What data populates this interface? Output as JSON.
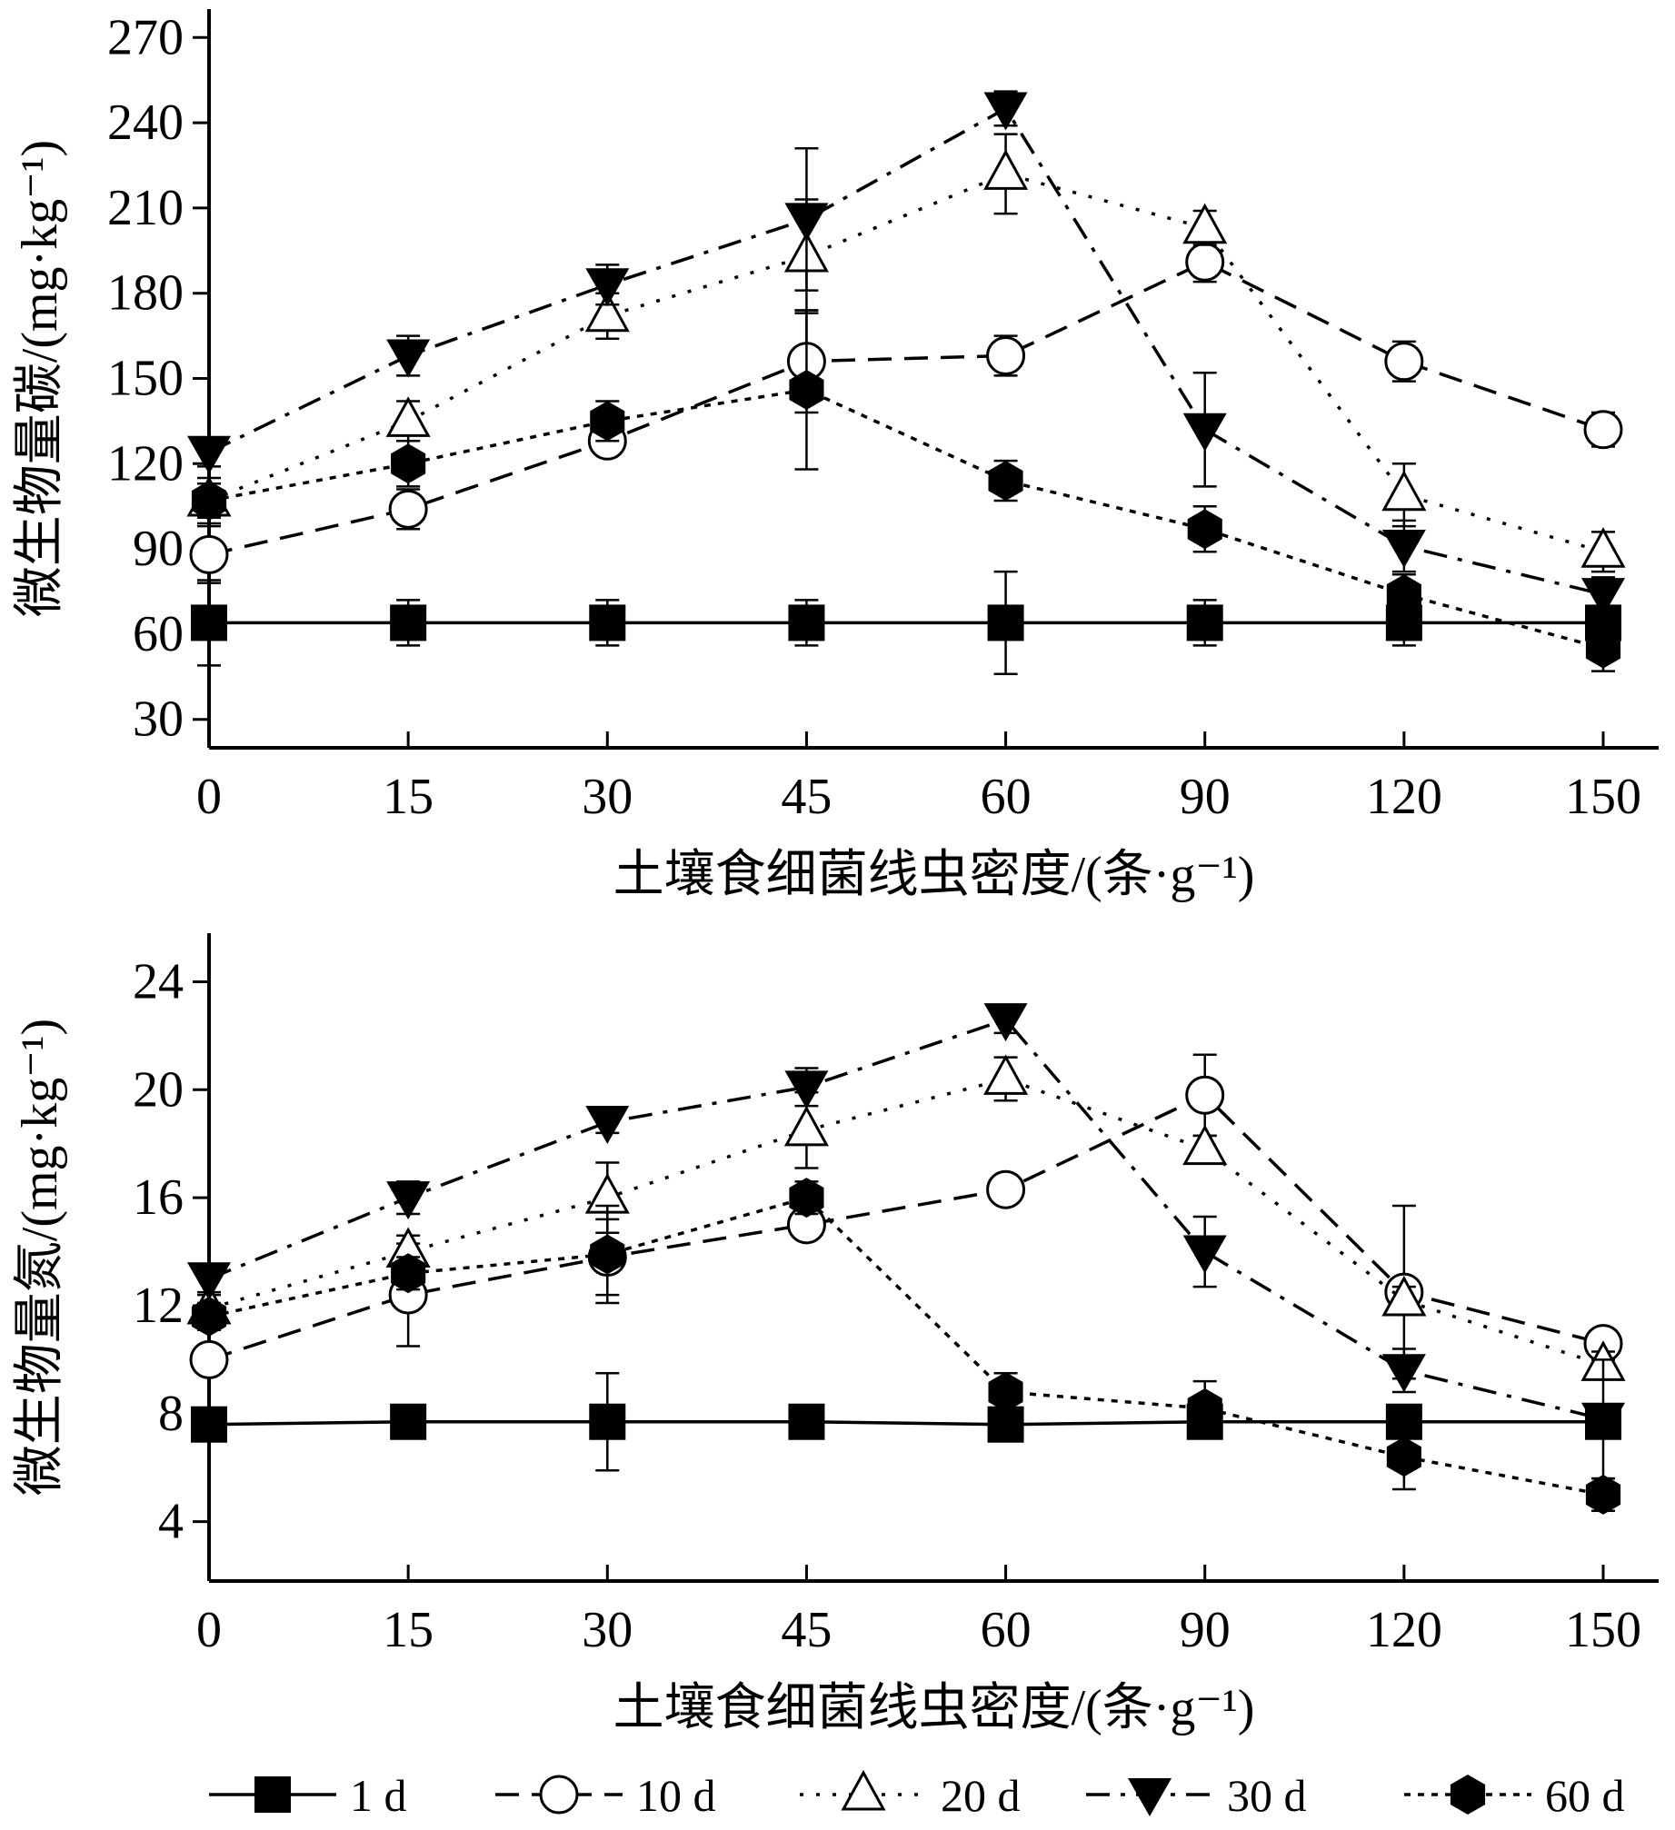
{
  "chart_data": [
    {
      "type": "line",
      "ylabel": "微生物量碳/(mg·kg⁻¹)",
      "xlabel": "土壤食细菌线虫密度/(条·g⁻¹)",
      "categories": [
        "0",
        "15",
        "30",
        "45",
        "60",
        "90",
        "120",
        "150"
      ],
      "ylim": [
        20,
        280
      ],
      "yticks": [
        "30",
        "60",
        "90",
        "120",
        "150",
        "180",
        "210",
        "240",
        "270"
      ],
      "series": [
        {
          "name": "1 d",
          "values": [
            64,
            64,
            64,
            64,
            64,
            64,
            64,
            64
          ],
          "errors": [
            15,
            8,
            8,
            8,
            18,
            8,
            8,
            4
          ]
        },
        {
          "name": "10 d",
          "values": [
            88,
            104,
            128,
            156,
            158,
            191,
            156,
            132
          ],
          "errors": [
            10,
            7,
            5,
            18,
            7,
            7,
            7,
            6
          ]
        },
        {
          "name": "20 d",
          "values": [
            107,
            135,
            172,
            193,
            222,
            203,
            109,
            89
          ],
          "errors": [
            8,
            7,
            8,
            20,
            14,
            6,
            11,
            7
          ]
        },
        {
          "name": "30 d",
          "values": [
            124,
            158,
            183,
            206,
            245,
            132,
            91,
            74
          ],
          "errors": [
            5,
            7,
            7,
            25,
            6,
            20,
            9,
            6
          ]
        },
        {
          "name": "60 d",
          "values": [
            107,
            120,
            135,
            146,
            114,
            97,
            74,
            55
          ],
          "errors": [
            6,
            8,
            7,
            28,
            7,
            8,
            7,
            8
          ]
        }
      ]
    },
    {
      "type": "line",
      "ylabel": "微生物量氮/(mg·kg⁻¹)",
      "xlabel": "土壤食细菌线虫密度/(条·g⁻¹)",
      "categories": [
        "0",
        "15",
        "30",
        "45",
        "60",
        "90",
        "120",
        "150"
      ],
      "ylim": [
        1.8,
        25.8
      ],
      "yticks": [
        "4",
        "8",
        "12",
        "16",
        "20",
        "24"
      ],
      "series": [
        {
          "name": "1 d",
          "values": [
            7.6,
            7.7,
            7.7,
            7.7,
            7.6,
            7.7,
            7.7,
            7.7
          ],
          "errors": [
            0.3,
            0.3,
            1.8,
            0.3,
            0.3,
            0.4,
            0.3,
            0.3
          ]
        },
        {
          "name": "10 d",
          "values": [
            10.0,
            12.4,
            13.8,
            15.0,
            16.3,
            19.8,
            12.5,
            10.6
          ],
          "errors": [
            0.4,
            1.9,
            1.4,
            0.5,
            0.4,
            1.5,
            3.2,
            0.5
          ]
        },
        {
          "name": "20 d",
          "values": [
            11.9,
            14.0,
            16.0,
            18.5,
            20.4,
            17.8,
            12.2,
            9.8
          ],
          "errors": [
            0.5,
            0.6,
            1.3,
            1.4,
            0.8,
            0.5,
            0.5,
            0.5
          ]
        },
        {
          "name": "30 d",
          "values": [
            13.0,
            16.0,
            18.8,
            20.1,
            22.6,
            14.0,
            9.6,
            7.8
          ],
          "errors": [
            0.5,
            0.6,
            0.4,
            0.7,
            0.5,
            1.3,
            0.8,
            2.2
          ]
        },
        {
          "name": "60 d",
          "values": [
            11.6,
            13.2,
            13.9,
            16.0,
            8.8,
            8.2,
            6.4,
            5.0
          ],
          "errors": [
            0.5,
            0.6,
            1.8,
            0.6,
            0.7,
            1.0,
            1.2,
            0.6
          ]
        }
      ]
    }
  ],
  "legend": [
    {
      "label": "1 d",
      "marker": "filled-square"
    },
    {
      "label": "10 d",
      "marker": "open-circle"
    },
    {
      "label": "20 d",
      "marker": "open-triangle"
    },
    {
      "label": "30 d",
      "marker": "filled-inverted-triangle"
    },
    {
      "label": "60 d",
      "marker": "filled-hexagon"
    }
  ],
  "styles": {
    "1 d": {
      "dash": "solid",
      "marker": "square"
    },
    "10 d": {
      "dash": "dashed",
      "marker": "circle"
    },
    "20 d": {
      "dash": "dotted",
      "marker": "triangle"
    },
    "30 d": {
      "dash": "dash-dot",
      "marker": "inverted-triangle"
    },
    "60 d": {
      "dash": "short-dotted",
      "marker": "hexagon"
    }
  },
  "colors": {
    "ink": "#000000",
    "background": "#ffffff"
  }
}
